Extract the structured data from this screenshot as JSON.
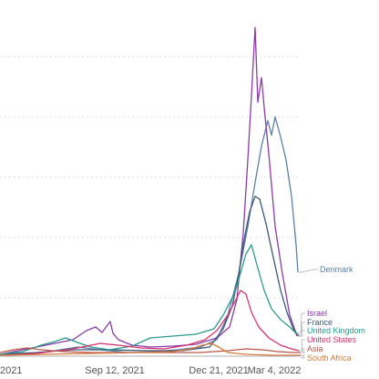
{
  "chart_data": {
    "type": "line",
    "title": "",
    "xlabel": "",
    "ylabel": "",
    "x_ticks": [
      "2021",
      "Sep 12, 2021",
      "Dec 21, 2021",
      "Mar 4, 2022"
    ],
    "grid": "horizontal dotted",
    "legend": "inline labels at right end",
    "series": [
      {
        "name": "Denmark",
        "color": "#5b7faa",
        "points": [
          [
            0,
            389
          ],
          [
            30,
            388
          ],
          [
            60,
            384
          ],
          [
            85,
            380
          ],
          [
            110,
            383
          ],
          [
            140,
            386
          ],
          [
            170,
            385
          ],
          [
            195,
            383
          ],
          [
            220,
            380
          ],
          [
            238,
            372
          ],
          [
            250,
            345
          ],
          [
            262,
            300
          ],
          [
            272,
            248
          ],
          [
            280,
            200
          ],
          [
            287,
            160
          ],
          [
            294,
            132
          ],
          [
            298,
            148
          ],
          [
            302,
            128
          ],
          [
            308,
            150
          ],
          [
            314,
            175
          ],
          [
            320,
            215
          ],
          [
            325,
            268
          ],
          [
            327,
            298
          ]
        ]
      },
      {
        "name": "Israel",
        "color": "#8a3aab",
        "points": [
          [
            0,
            388
          ],
          [
            30,
            382
          ],
          [
            60,
            376
          ],
          [
            80,
            372
          ],
          [
            95,
            362
          ],
          [
            105,
            358
          ],
          [
            112,
            364
          ],
          [
            118,
            356
          ],
          [
            121,
            352
          ],
          [
            124,
            365
          ],
          [
            130,
            372
          ],
          [
            145,
            378
          ],
          [
            165,
            380
          ],
          [
            190,
            379
          ],
          [
            215,
            377
          ],
          [
            238,
            370
          ],
          [
            252,
            358
          ],
          [
            260,
            328
          ],
          [
            267,
            255
          ],
          [
            272,
            175
          ],
          [
            276,
            105
          ],
          [
            280,
            30
          ],
          [
            283,
            112
          ],
          [
            287,
            85
          ],
          [
            290,
            118
          ],
          [
            295,
            168
          ],
          [
            302,
            248
          ],
          [
            310,
            300
          ],
          [
            318,
            345
          ],
          [
            326,
            368
          ]
        ]
      },
      {
        "name": "France",
        "color": "#3a5777",
        "points": [
          [
            0,
            388
          ],
          [
            40,
            386
          ],
          [
            80,
            383
          ],
          [
            120,
            383
          ],
          [
            160,
            384
          ],
          [
            200,
            384
          ],
          [
            230,
            380
          ],
          [
            245,
            360
          ],
          [
            255,
            335
          ],
          [
            262,
            300
          ],
          [
            268,
            262
          ],
          [
            274,
            232
          ],
          [
            280,
            215
          ],
          [
            285,
            218
          ],
          [
            292,
            245
          ],
          [
            300,
            282
          ],
          [
            308,
            318
          ],
          [
            315,
            342
          ],
          [
            322,
            360
          ],
          [
            328,
            368
          ]
        ]
      },
      {
        "name": "United Kingdom",
        "color": "#2a9b8c",
        "points": [
          [
            0,
            388
          ],
          [
            25,
            385
          ],
          [
            45,
            378
          ],
          [
            60,
            374
          ],
          [
            72,
            370
          ],
          [
            85,
            375
          ],
          [
            100,
            380
          ],
          [
            120,
            383
          ],
          [
            145,
            379
          ],
          [
            165,
            370
          ],
          [
            190,
            368
          ],
          [
            215,
            366
          ],
          [
            235,
            360
          ],
          [
            245,
            345
          ],
          [
            258,
            320
          ],
          [
            270,
            278
          ],
          [
            276,
            268
          ],
          [
            282,
            290
          ],
          [
            290,
            318
          ],
          [
            298,
            338
          ],
          [
            308,
            350
          ],
          [
            318,
            358
          ],
          [
            325,
            365
          ]
        ]
      },
      {
        "name": "United States",
        "color": "#d6336c",
        "points": [
          [
            0,
            389
          ],
          [
            40,
            387
          ],
          [
            80,
            382
          ],
          [
            110,
            376
          ],
          [
            130,
            378
          ],
          [
            155,
            381
          ],
          [
            180,
            382
          ],
          [
            205,
            378
          ],
          [
            225,
            372
          ],
          [
            238,
            362
          ],
          [
            250,
            345
          ],
          [
            258,
            330
          ],
          [
            264,
            318
          ],
          [
            270,
            322
          ],
          [
            276,
            342
          ],
          [
            284,
            358
          ],
          [
            295,
            370
          ],
          [
            308,
            378
          ],
          [
            320,
            382
          ],
          [
            328,
            384
          ]
        ]
      },
      {
        "name": "Asia",
        "color": "#b8574a",
        "points": [
          [
            0,
            386
          ],
          [
            15,
            383
          ],
          [
            30,
            381
          ],
          [
            45,
            383
          ],
          [
            70,
            385
          ],
          [
            100,
            386
          ],
          [
            140,
            386
          ],
          [
            180,
            386
          ],
          [
            220,
            386
          ],
          [
            250,
            384
          ],
          [
            270,
            382
          ],
          [
            288,
            383
          ],
          [
            305,
            385
          ],
          [
            322,
            386
          ],
          [
            330,
            386
          ]
        ]
      },
      {
        "name": "South Africa",
        "color": "#d67a3c",
        "points": [
          [
            0,
            389
          ],
          [
            50,
            388
          ],
          [
            100,
            387
          ],
          [
            150,
            386
          ],
          [
            190,
            385
          ],
          [
            210,
            382
          ],
          [
            222,
            378
          ],
          [
            232,
            376
          ],
          [
            240,
            380
          ],
          [
            250,
            386
          ],
          [
            270,
            388
          ],
          [
            300,
            389
          ],
          [
            330,
            389
          ]
        ]
      }
    ],
    "label_positions": []
  }
}
